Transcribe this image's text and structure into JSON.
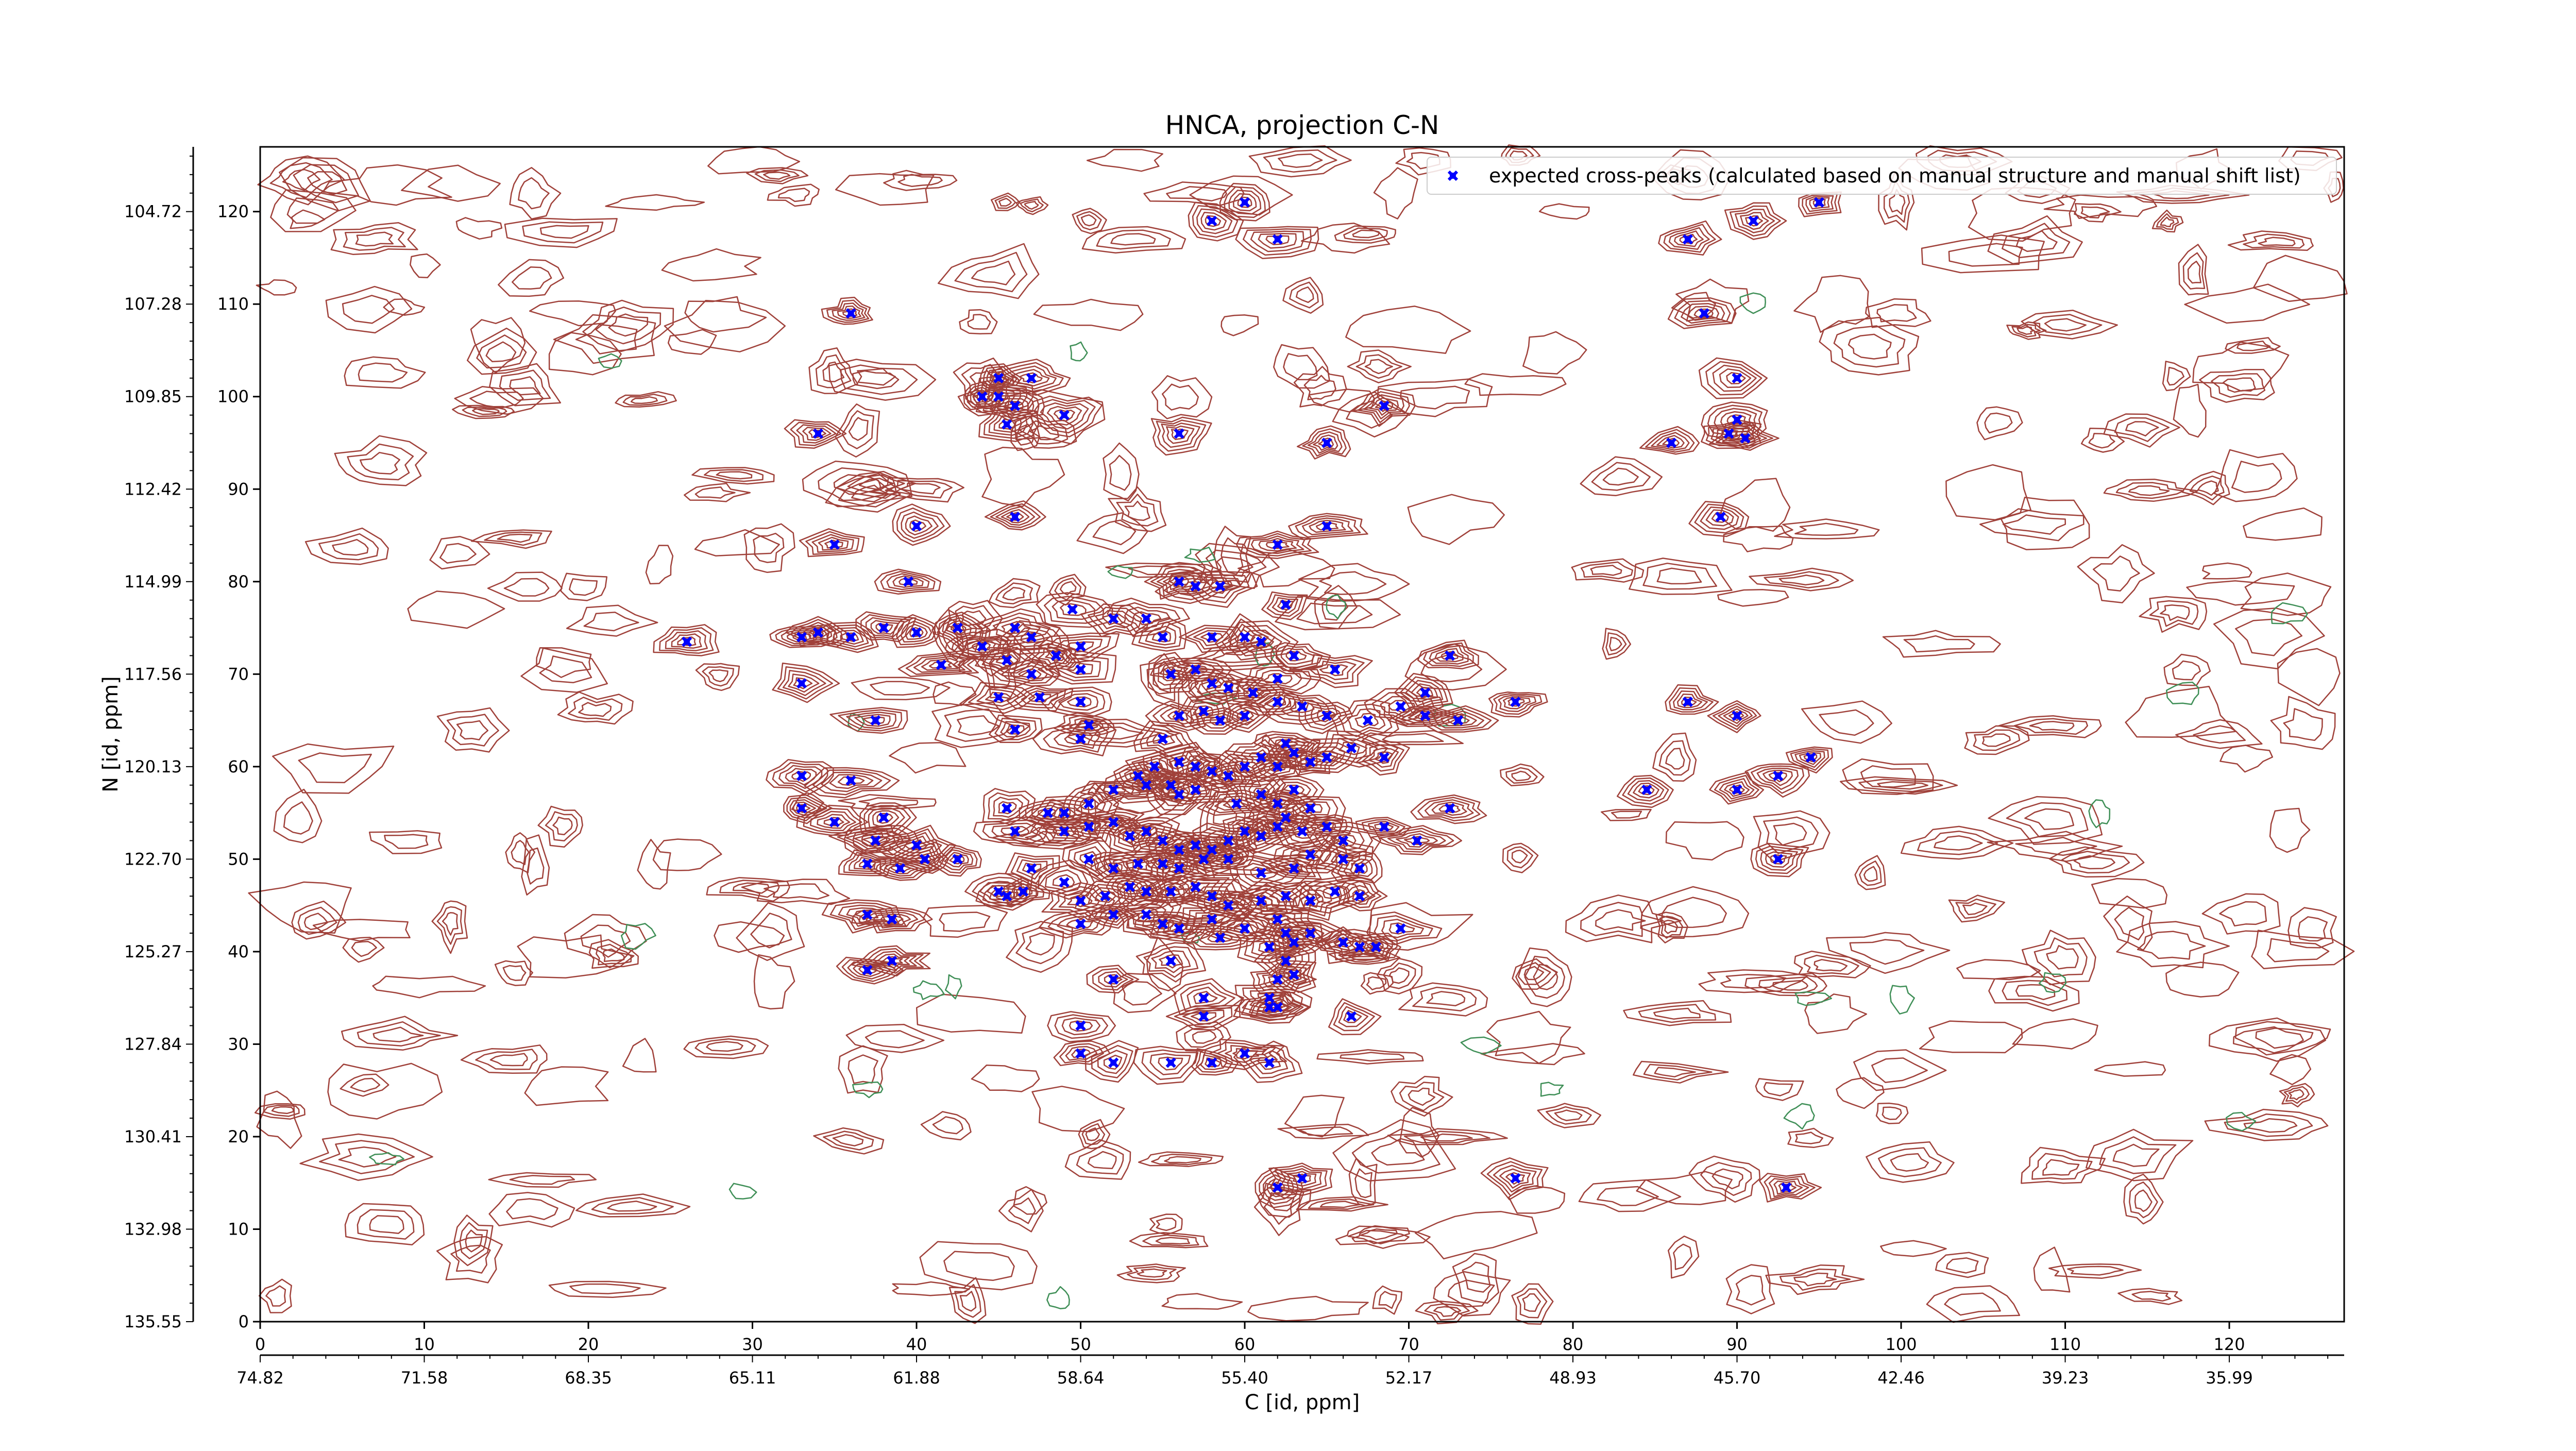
{
  "chart_data": {
    "type": "contour",
    "title": "HNCA, projection C-N",
    "xlabel": "C [id, ppm]",
    "ylabel": "N [id, ppm]",
    "x_index_ticks": [
      "0",
      "10",
      "20",
      "30",
      "40",
      "50",
      "60",
      "70",
      "80",
      "90",
      "100",
      "110",
      "120"
    ],
    "x_ppm_ticks": [
      "74.82",
      "71.58",
      "68.35",
      "65.11",
      "61.88",
      "58.64",
      "55.40",
      "52.17",
      "48.93",
      "45.70",
      "42.46",
      "39.23",
      "35.99"
    ],
    "y_index_ticks": [
      "0",
      "10",
      "20",
      "30",
      "40",
      "50",
      "60",
      "70",
      "80",
      "90",
      "100",
      "110",
      "120"
    ],
    "y_ppm_ticks": [
      "135.55",
      "132.98",
      "130.41",
      "127.84",
      "125.27",
      "122.70",
      "120.13",
      "117.56",
      "114.99",
      "112.42",
      "109.85",
      "107.28",
      "104.72"
    ],
    "xlim": [
      0,
      127
    ],
    "ylim": [
      0,
      127
    ],
    "legend": {
      "position": "top-right",
      "entries": [
        {
          "label": "expected cross-peaks (calculated based on manual structure and manual shift list)",
          "color": "#0000ff",
          "marker": "x"
        }
      ]
    },
    "contour_colors": {
      "positive": "#a0413a",
      "negative": "#3f8f57"
    },
    "peak_color": "#0000ff",
    "peaks": [
      [
        60.0,
        121.0
      ],
      [
        58.0,
        119.0
      ],
      [
        62.0,
        117.0
      ],
      [
        87.0,
        117.0
      ],
      [
        88.0,
        109.0
      ],
      [
        91.0,
        119.0
      ],
      [
        95.0,
        121.0
      ],
      [
        36.0,
        109.0
      ],
      [
        45.0,
        102.0
      ],
      [
        47.0,
        102.0
      ],
      [
        44.0,
        100.0
      ],
      [
        45.0,
        100.0
      ],
      [
        46.0,
        99.0
      ],
      [
        45.5,
        97.0
      ],
      [
        49.0,
        98.0
      ],
      [
        34.0,
        96.0
      ],
      [
        56.0,
        96.0
      ],
      [
        65.0,
        95.0
      ],
      [
        68.5,
        99.0
      ],
      [
        90.0,
        102.0
      ],
      [
        90.0,
        97.5
      ],
      [
        89.5,
        96.0
      ],
      [
        90.5,
        95.5
      ],
      [
        86.0,
        95.0
      ],
      [
        40.0,
        86.0
      ],
      [
        46.0,
        87.0
      ],
      [
        35.0,
        84.0
      ],
      [
        62.0,
        84.0
      ],
      [
        65.0,
        86.0
      ],
      [
        89.0,
        87.0
      ],
      [
        39.5,
        80.0
      ],
      [
        56.0,
        80.0
      ],
      [
        57.0,
        79.5
      ],
      [
        58.5,
        79.5
      ],
      [
        49.5,
        77.0
      ],
      [
        62.5,
        77.5
      ],
      [
        26.0,
        73.5
      ],
      [
        33.0,
        74.0
      ],
      [
        34.0,
        74.5
      ],
      [
        36.0,
        74.0
      ],
      [
        38.0,
        75.0
      ],
      [
        40.0,
        74.5
      ],
      [
        42.5,
        75.0
      ],
      [
        44.0,
        73.0
      ],
      [
        46.0,
        75.0
      ],
      [
        47.0,
        74.0
      ],
      [
        48.5,
        72.0
      ],
      [
        50.0,
        73.0
      ],
      [
        52.0,
        76.0
      ],
      [
        54.0,
        76.0
      ],
      [
        55.0,
        74.0
      ],
      [
        58.0,
        74.0
      ],
      [
        60.0,
        74.0
      ],
      [
        61.0,
        73.5
      ],
      [
        63.0,
        72.0
      ],
      [
        33.0,
        69.0
      ],
      [
        41.5,
        71.0
      ],
      [
        45.5,
        71.5
      ],
      [
        47.0,
        70.0
      ],
      [
        50.0,
        70.5
      ],
      [
        55.5,
        70.0
      ],
      [
        57.0,
        70.5
      ],
      [
        58.0,
        69.0
      ],
      [
        59.0,
        68.5
      ],
      [
        60.5,
        68.0
      ],
      [
        62.0,
        69.5
      ],
      [
        65.5,
        70.5
      ],
      [
        72.5,
        72.0
      ],
      [
        71.0,
        68.0
      ],
      [
        37.5,
        65.0
      ],
      [
        45.0,
        67.5
      ],
      [
        47.5,
        67.5
      ],
      [
        50.0,
        67.0
      ],
      [
        50.5,
        64.5
      ],
      [
        46.0,
        64.0
      ],
      [
        50.0,
        63.0
      ],
      [
        56.0,
        65.5
      ],
      [
        57.5,
        66.0
      ],
      [
        58.5,
        65.0
      ],
      [
        60.0,
        65.5
      ],
      [
        62.0,
        67.0
      ],
      [
        63.5,
        66.5
      ],
      [
        65.0,
        65.5
      ],
      [
        67.5,
        65.0
      ],
      [
        69.5,
        66.5
      ],
      [
        71.0,
        65.5
      ],
      [
        73.0,
        65.0
      ],
      [
        76.5,
        67.0
      ],
      [
        87.0,
        67.0
      ],
      [
        90.0,
        65.5
      ],
      [
        55.0,
        63.0
      ],
      [
        54.5,
        60.0
      ],
      [
        53.5,
        59.0
      ],
      [
        54.0,
        58.0
      ],
      [
        55.5,
        58.0
      ],
      [
        56.0,
        60.5
      ],
      [
        57.0,
        60.0
      ],
      [
        58.0,
        59.5
      ],
      [
        59.0,
        59.0
      ],
      [
        60.0,
        60.0
      ],
      [
        61.0,
        61.0
      ],
      [
        62.0,
        60.0
      ],
      [
        62.5,
        62.5
      ],
      [
        63.0,
        61.5
      ],
      [
        64.0,
        60.5
      ],
      [
        65.0,
        61.0
      ],
      [
        66.5,
        62.0
      ],
      [
        68.5,
        61.0
      ],
      [
        56.0,
        57.0
      ],
      [
        57.0,
        57.5
      ],
      [
        59.5,
        56.0
      ],
      [
        61.0,
        57.0
      ],
      [
        62.0,
        56.0
      ],
      [
        63.0,
        57.5
      ],
      [
        62.5,
        54.5
      ],
      [
        64.0,
        55.5
      ],
      [
        52.0,
        57.5
      ],
      [
        50.5,
        56.0
      ],
      [
        49.0,
        55.0
      ],
      [
        48.0,
        55.0
      ],
      [
        45.5,
        55.5
      ],
      [
        33.0,
        59.0
      ],
      [
        36.0,
        58.5
      ],
      [
        33.0,
        55.5
      ],
      [
        35.0,
        54.0
      ],
      [
        38.0,
        54.5
      ],
      [
        37.5,
        52.0
      ],
      [
        40.0,
        51.5
      ],
      [
        39.0,
        49.0
      ],
      [
        37.0,
        49.5
      ],
      [
        40.5,
        50.0
      ],
      [
        42.5,
        50.0
      ],
      [
        46.0,
        53.0
      ],
      [
        49.0,
        53.0
      ],
      [
        50.5,
        53.5
      ],
      [
        52.0,
        54.0
      ],
      [
        53.0,
        52.5
      ],
      [
        54.0,
        53.0
      ],
      [
        55.0,
        52.0
      ],
      [
        56.0,
        51.0
      ],
      [
        57.0,
        51.5
      ],
      [
        58.0,
        51.0
      ],
      [
        59.0,
        52.0
      ],
      [
        60.0,
        53.0
      ],
      [
        61.0,
        52.5
      ],
      [
        62.0,
        53.5
      ],
      [
        63.5,
        53.0
      ],
      [
        65.0,
        53.5
      ],
      [
        66.0,
        52.0
      ],
      [
        68.5,
        53.5
      ],
      [
        72.5,
        55.5
      ],
      [
        47.0,
        49.0
      ],
      [
        50.5,
        50.0
      ],
      [
        52.0,
        49.0
      ],
      [
        53.5,
        49.5
      ],
      [
        55.0,
        49.5
      ],
      [
        56.0,
        49.0
      ],
      [
        57.5,
        50.0
      ],
      [
        59.0,
        50.0
      ],
      [
        61.0,
        48.5
      ],
      [
        63.0,
        49.0
      ],
      [
        64.0,
        50.5
      ],
      [
        66.0,
        50.0
      ],
      [
        67.0,
        49.0
      ],
      [
        45.0,
        46.5
      ],
      [
        45.5,
        46.0
      ],
      [
        46.5,
        46.5
      ],
      [
        49.0,
        47.5
      ],
      [
        50.0,
        45.5
      ],
      [
        51.5,
        46.0
      ],
      [
        53.0,
        47.0
      ],
      [
        54.0,
        46.5
      ],
      [
        55.5,
        46.5
      ],
      [
        57.0,
        47.0
      ],
      [
        58.0,
        46.0
      ],
      [
        59.0,
        45.0
      ],
      [
        61.0,
        45.5
      ],
      [
        62.5,
        46.0
      ],
      [
        64.0,
        45.5
      ],
      [
        65.5,
        46.5
      ],
      [
        67.0,
        46.0
      ],
      [
        37.0,
        44.0
      ],
      [
        38.5,
        43.5
      ],
      [
        52.0,
        44.0
      ],
      [
        54.0,
        44.0
      ],
      [
        55.0,
        43.0
      ],
      [
        56.0,
        42.5
      ],
      [
        58.0,
        43.5
      ],
      [
        58.5,
        41.5
      ],
      [
        60.0,
        42.5
      ],
      [
        62.0,
        43.5
      ],
      [
        62.5,
        42.0
      ],
      [
        61.5,
        40.5
      ],
      [
        63.0,
        41.0
      ],
      [
        64.0,
        42.0
      ],
      [
        66.0,
        41.0
      ],
      [
        67.0,
        40.5
      ],
      [
        68.0,
        40.5
      ],
      [
        69.5,
        42.5
      ],
      [
        37.0,
        38.0
      ],
      [
        38.5,
        39.0
      ],
      [
        50.0,
        43.0
      ],
      [
        55.5,
        39.0
      ],
      [
        62.5,
        39.0
      ],
      [
        63.0,
        37.5
      ],
      [
        62.0,
        37.0
      ],
      [
        52.0,
        37.0
      ],
      [
        57.5,
        35.0
      ],
      [
        61.5,
        35.0
      ],
      [
        61.5,
        34.0
      ],
      [
        62.0,
        34.0
      ],
      [
        57.5,
        33.0
      ],
      [
        66.5,
        33.0
      ],
      [
        50.0,
        32.0
      ],
      [
        60.0,
        29.0
      ],
      [
        52.0,
        28.0
      ],
      [
        55.5,
        28.0
      ],
      [
        58.0,
        28.0
      ],
      [
        61.5,
        28.0
      ],
      [
        50.0,
        29.0
      ],
      [
        76.5,
        15.5
      ],
      [
        93.0,
        14.5
      ],
      [
        63.5,
        15.5
      ],
      [
        62.0,
        14.5
      ],
      [
        84.5,
        57.5
      ],
      [
        90.0,
        57.5
      ],
      [
        92.5,
        59.0
      ],
      [
        94.5,
        61.0
      ],
      [
        92.5,
        50.0
      ],
      [
        70.5,
        52.0
      ]
    ]
  }
}
